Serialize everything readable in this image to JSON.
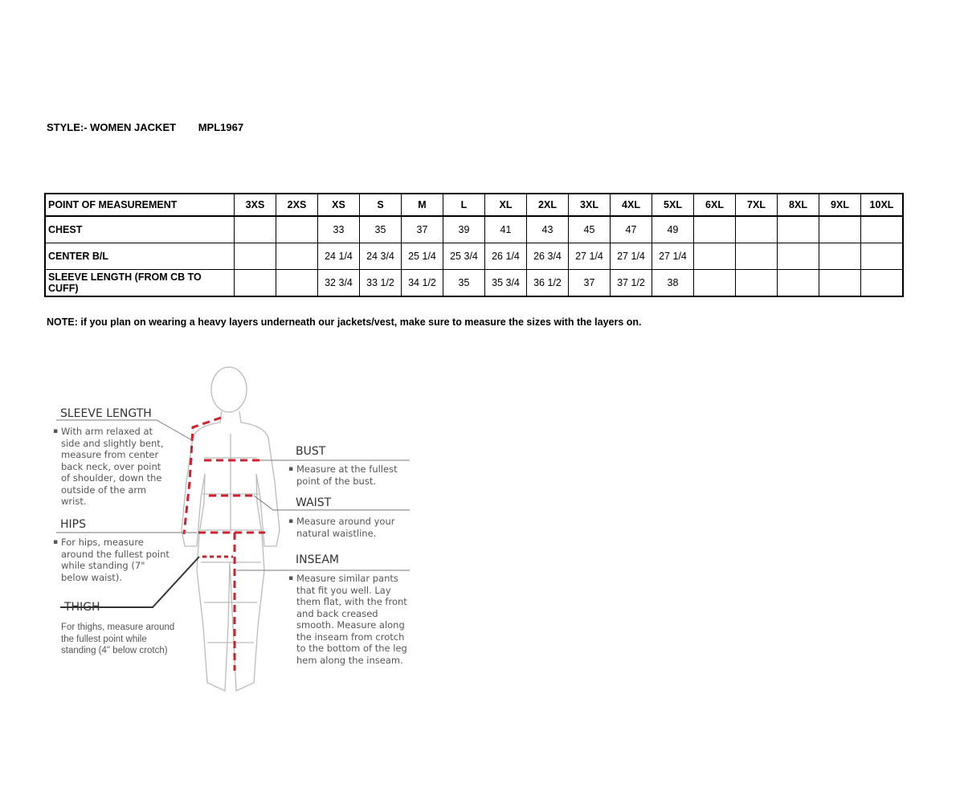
{
  "style": {
    "label": "STYLE:- WOMEN JACKET",
    "code": "MPL1967"
  },
  "table": {
    "header": "POINT OF MEASUREMENT",
    "sizes": [
      "3XS",
      "2XS",
      "XS",
      "S",
      "M",
      "L",
      "XL",
      "2XL",
      "3XL",
      "4XL",
      "5XL",
      "6XL",
      "7XL",
      "8XL",
      "9XL",
      "10XL"
    ],
    "rows": [
      {
        "name": "CHEST",
        "values": [
          "",
          "",
          "33",
          "35",
          "37",
          "39",
          "41",
          "43",
          "45",
          "47",
          "49",
          "",
          "",
          "",
          "",
          ""
        ]
      },
      {
        "name": "CENTER B/L",
        "values": [
          "",
          "",
          "24 1/4",
          "24 3/4",
          "25 1/4",
          "25 3/4",
          "26 1/4",
          "26 3/4",
          "27 1/4",
          "27 1/4",
          "27 1/4",
          "",
          "",
          "",
          "",
          ""
        ]
      },
      {
        "name": "SLEEVE LENGTH (FROM CB TO CUFF)",
        "values": [
          "",
          "",
          "32 3/4",
          "33 1/2",
          "34 1/2",
          "35",
          "35 3/4",
          "36 1/2",
          "37",
          "37 1/2",
          "38",
          "",
          "",
          "",
          "",
          ""
        ]
      }
    ]
  },
  "note": "NOTE: if you plan on wearing a heavy layers underneath our jackets/vest, make sure to measure the sizes with the layers on.",
  "figure": {
    "accent_color": "#d0202e",
    "sleeve": {
      "title": "SLEEVE LENGTH",
      "text": "With arm relaxed at side and slightly bent, measure from center back neck, over point of shoulder, down the outside of the arm wrist."
    },
    "hips": {
      "title": "HIPS",
      "text": "For hips, measure around the fullest point while standing (7\" below waist)."
    },
    "thigh": {
      "title": "THIGH",
      "text": "For thighs, measure around the fullest point while standing (4\" below crotch)"
    },
    "bust": {
      "title": "BUST",
      "text": "Measure at the fullest point of the bust."
    },
    "waist": {
      "title": "WAIST",
      "text": "Measure around your natural waistline."
    },
    "inseam": {
      "title": "INSEAM",
      "text": "Measure similar pants that fit you well. Lay them flat, with the front and back creased smooth. Measure along the inseam from crotch to the bottom of the leg hem along the inseam."
    }
  }
}
